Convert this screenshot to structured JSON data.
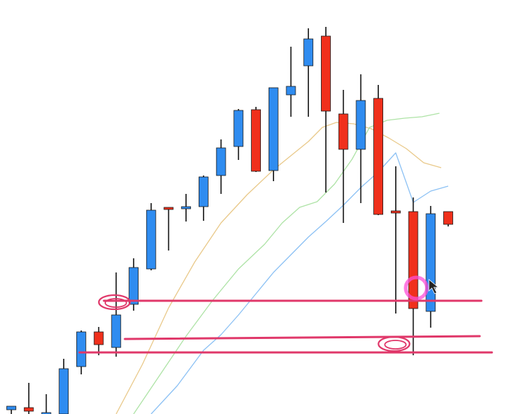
{
  "chart_data": {
    "type": "candlestick",
    "title": "",
    "xlabel": "",
    "ylabel": "",
    "ylim": [
      0,
      585
    ],
    "grid": false,
    "colors": {
      "up": "#2f8cf0",
      "down": "#f0301c",
      "annotation": "#e0386a",
      "cursor": "#ff4fd8"
    },
    "candles": [
      {
        "o": 6,
        "h": 9,
        "l": 0,
        "c": 11
      },
      {
        "o": 9,
        "h": 44,
        "l": 0,
        "c": 4
      },
      {
        "o": 1,
        "h": 28,
        "l": 0,
        "c": 2
      },
      {
        "o": 0,
        "h": 78,
        "l": 0,
        "c": 64
      },
      {
        "o": 67,
        "h": 118,
        "l": 56,
        "c": 116
      },
      {
        "o": 116,
        "h": 123,
        "l": 83,
        "c": 98
      },
      {
        "o": 94,
        "h": 200,
        "l": 81,
        "c": 140
      },
      {
        "o": 155,
        "h": 220,
        "l": 146,
        "c": 207
      },
      {
        "o": 205,
        "h": 298,
        "l": 203,
        "c": 288
      },
      {
        "o": 292,
        "h": 290,
        "l": 231,
        "c": 290
      },
      {
        "o": 293,
        "h": 311,
        "l": 272,
        "c": 293
      },
      {
        "o": 293,
        "h": 337,
        "l": 273,
        "c": 335
      },
      {
        "o": 337,
        "h": 388,
        "l": 311,
        "c": 376
      },
      {
        "o": 378,
        "h": 431,
        "l": 359,
        "c": 429
      },
      {
        "o": 430,
        "h": 434,
        "l": 342,
        "c": 343
      },
      {
        "o": 344,
        "h": 461,
        "l": 329,
        "c": 461
      },
      {
        "o": 451,
        "h": 519,
        "l": 420,
        "c": 463
      },
      {
        "o": 492,
        "h": 545,
        "l": 420,
        "c": 530
      },
      {
        "o": 534,
        "h": 547,
        "l": 313,
        "c": 428
      },
      {
        "o": 424,
        "h": 458,
        "l": 270,
        "c": 374
      },
      {
        "o": 374,
        "h": 480,
        "l": 298,
        "c": 443
      },
      {
        "o": 446,
        "h": 465,
        "l": 281,
        "c": 282
      },
      {
        "o": 287,
        "h": 350,
        "l": 142,
        "c": 285
      },
      {
        "o": 286,
        "h": 306,
        "l": 83,
        "c": 149
      },
      {
        "o": 145,
        "h": 294,
        "l": 122,
        "c": 283
      },
      {
        "o": 286,
        "h": 285,
        "l": 265,
        "c": 268
      }
    ],
    "moving_averages": [
      {
        "color": "#e9c98a",
        "points": [
          [
            6,
            0
          ],
          [
            7.5,
            70
          ],
          [
            9,
            150
          ],
          [
            10.5,
            215
          ],
          [
            12,
            270
          ],
          [
            13.5,
            310
          ],
          [
            15,
            345
          ],
          [
            16,
            365
          ],
          [
            17,
            385
          ],
          [
            17.8,
            405
          ],
          [
            18.6,
            412
          ],
          [
            19.6,
            410
          ],
          [
            20.6,
            403
          ],
          [
            21.6,
            390
          ],
          [
            22.6,
            375
          ],
          [
            23.6,
            355
          ],
          [
            24.6,
            348
          ]
        ]
      },
      {
        "color": "#aee3a6",
        "points": [
          [
            7,
            0
          ],
          [
            8.5,
            55
          ],
          [
            10,
            110
          ],
          [
            11.5,
            160
          ],
          [
            13,
            205
          ],
          [
            14.5,
            240
          ],
          [
            15.5,
            270
          ],
          [
            16.5,
            292
          ],
          [
            17.5,
            300
          ],
          [
            18.5,
            325
          ],
          [
            19.5,
            360
          ],
          [
            20.5,
            405
          ],
          [
            21.5,
            415
          ],
          [
            22.5,
            418
          ],
          [
            23.5,
            420
          ],
          [
            24.5,
            425
          ]
        ]
      },
      {
        "color": "#8cc1f4",
        "points": [
          [
            8,
            0
          ],
          [
            9.5,
            40
          ],
          [
            11,
            90
          ],
          [
            12,
            112
          ],
          [
            13,
            140
          ],
          [
            14,
            170
          ],
          [
            15,
            200
          ],
          [
            16,
            225
          ],
          [
            17,
            250
          ],
          [
            18,
            272
          ],
          [
            19,
            295
          ],
          [
            20,
            320
          ],
          [
            21,
            342
          ],
          [
            22,
            369
          ],
          [
            23,
            299
          ],
          [
            24,
            315
          ],
          [
            25,
            322
          ]
        ]
      }
    ],
    "annotations": {
      "hlines": [
        {
          "x0": 3.9,
          "x1": 27.5,
          "y": 87
        },
        {
          "x0": 6.5,
          "x1": 26.8,
          "y": 106
        },
        {
          "x0": 5.3,
          "x1": 26.9,
          "y": 160
        }
      ],
      "circles": [
        {
          "x": 5.9,
          "y": 158
        },
        {
          "x": 21.9,
          "y": 99
        }
      ],
      "pointer": {
        "x": 23.9,
        "y": 190
      }
    }
  }
}
